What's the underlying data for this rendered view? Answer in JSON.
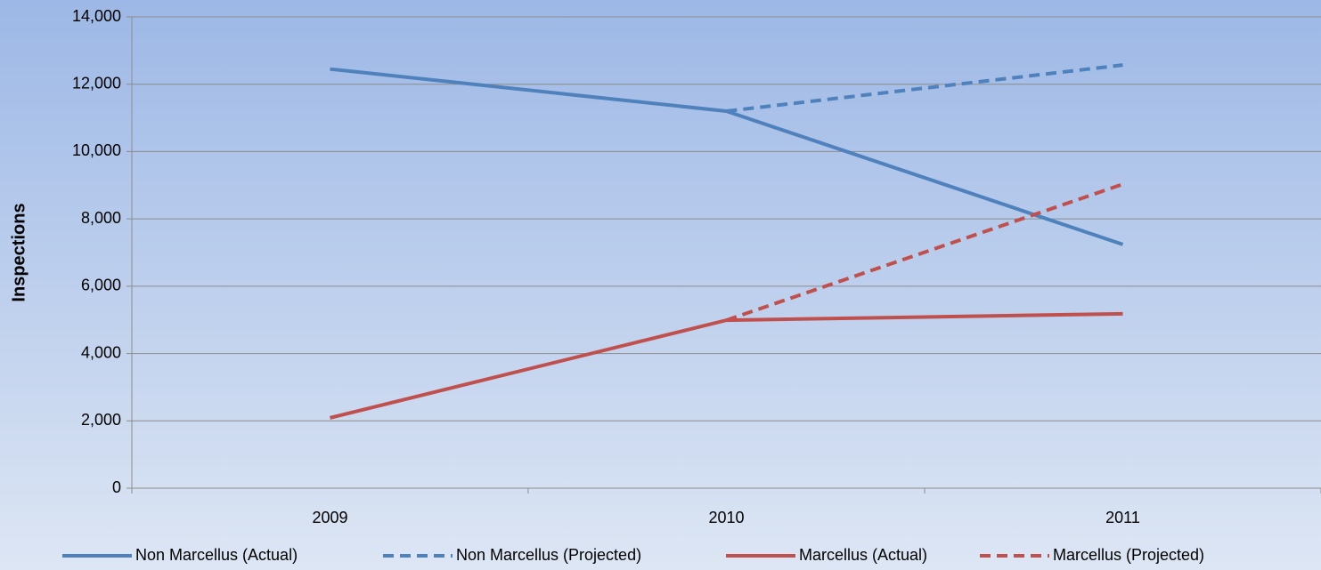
{
  "chart_data": {
    "type": "line",
    "y_label": "Inspections",
    "categories": [
      "2009",
      "2010",
      "2011"
    ],
    "series": [
      {
        "name": "Non Marcellus (Actual)",
        "color": "#4f81bd",
        "dashed": false,
        "values": [
          12450,
          11200,
          7240
        ]
      },
      {
        "name": "Non Marcellus (Projected)",
        "color": "#4f81bd",
        "dashed": true,
        "values": [
          null,
          11200,
          12570
        ]
      },
      {
        "name": "Marcellus (Actual)",
        "color": "#c0504d",
        "dashed": false,
        "values": [
          2090,
          4990,
          5180
        ]
      },
      {
        "name": "Marcellus (Projected)",
        "color": "#c0504d",
        "dashed": true,
        "values": [
          null,
          4990,
          9030
        ]
      }
    ],
    "ylim": [
      0,
      14000
    ],
    "yticks": [
      0,
      {
        "value": 2000,
        "label": "2,000"
      },
      {
        "value": 4000,
        "label": "4,000"
      },
      {
        "value": 6000,
        "label": "6,000"
      },
      {
        "value": 8000,
        "label": "8,000"
      },
      {
        "value": 10000,
        "label": "10,000"
      },
      {
        "value": 12000,
        "label": "12,000"
      },
      {
        "value": 14000,
        "label": "14,000"
      }
    ],
    "grid": true,
    "legend": "bottom"
  }
}
